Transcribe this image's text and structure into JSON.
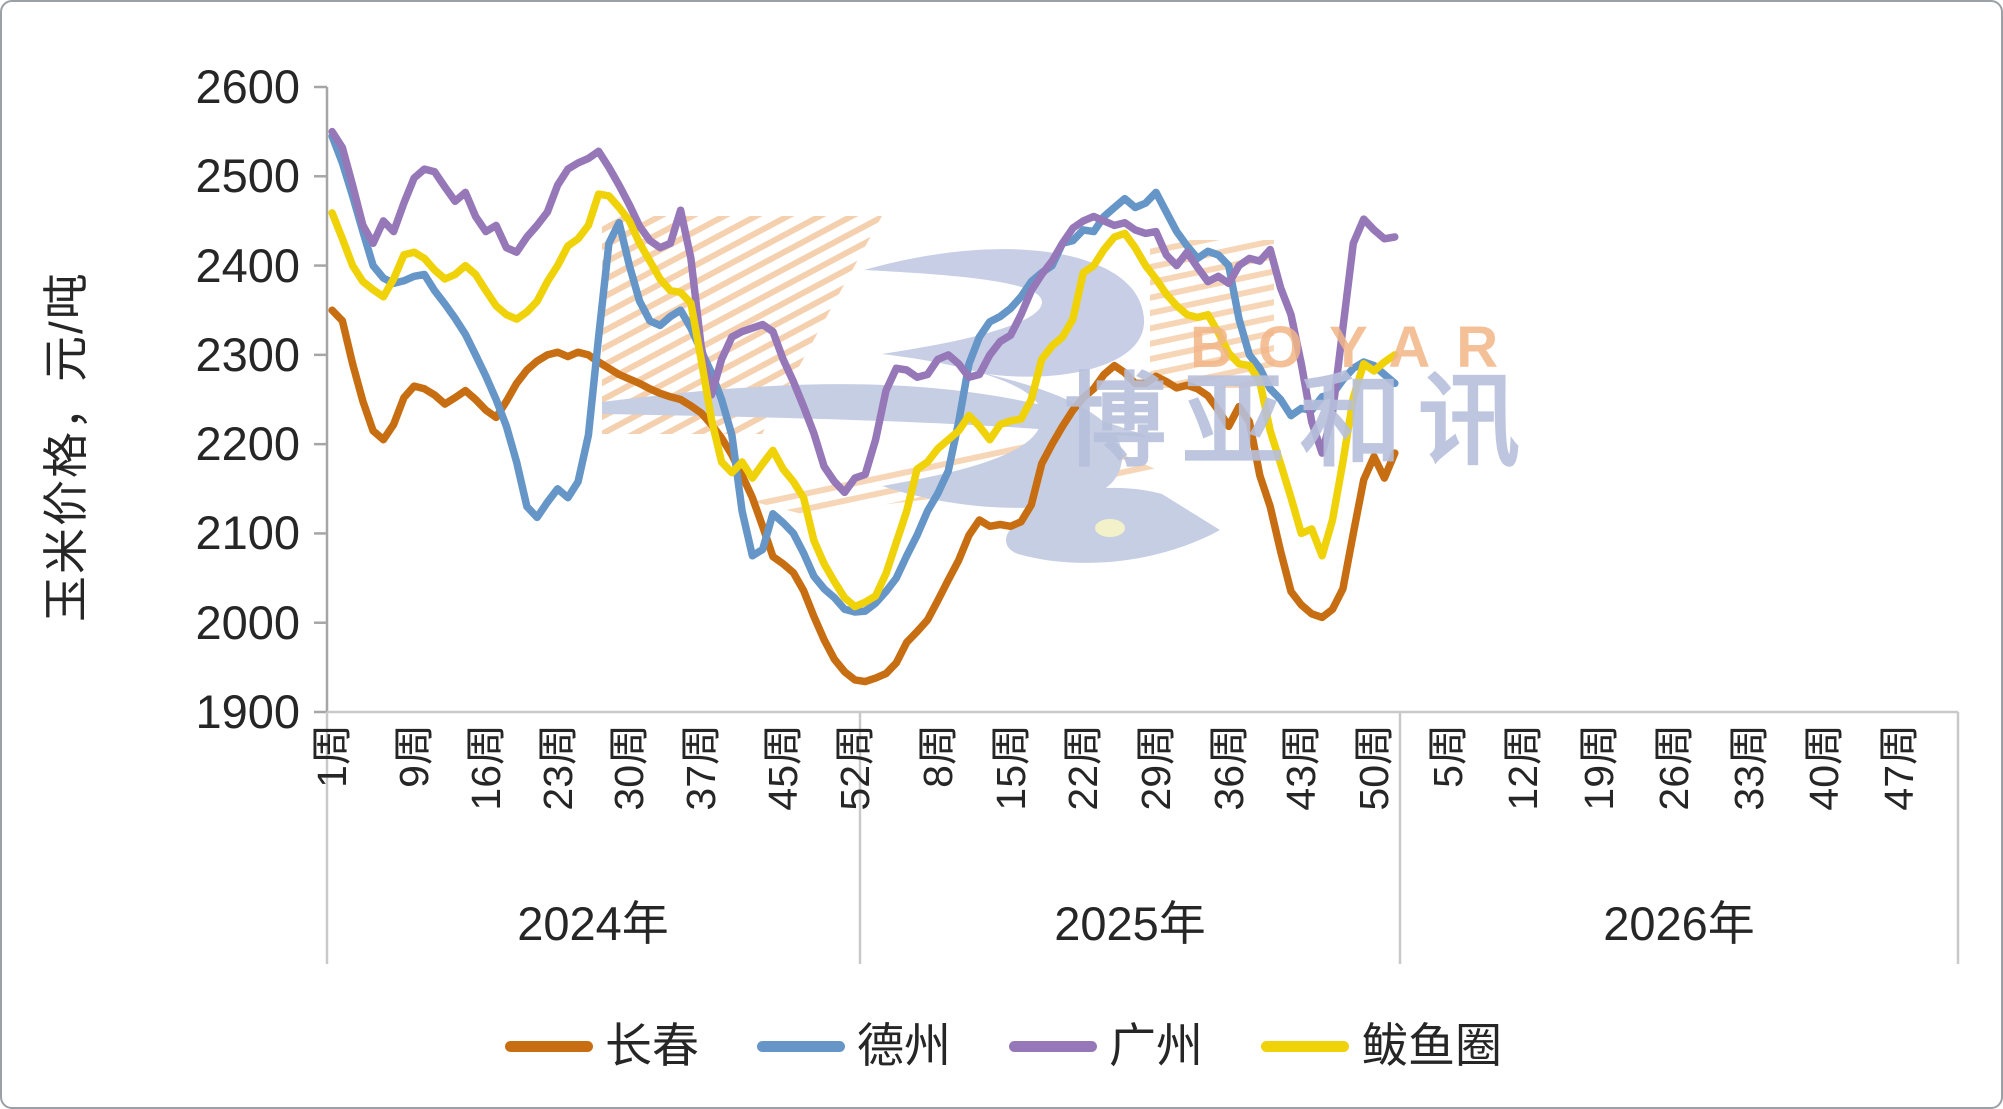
{
  "chart_data": {
    "type": "line",
    "title": "",
    "ylabel": "玉米价格，元/吨",
    "ylim": [
      1900,
      2600
    ],
    "ytick_step": 100,
    "yticks": [
      2600,
      2500,
      2400,
      2300,
      2200,
      2100,
      2000,
      1900
    ],
    "week_suffix": "周",
    "grid": "off",
    "legend_position": "bottom",
    "years": [
      {
        "label": "2024年",
        "weeks": 52,
        "tick_weeks": [
          1,
          9,
          16,
          23,
          30,
          37,
          45,
          52
        ],
        "has_data": true
      },
      {
        "label": "2025年",
        "weeks": 52,
        "tick_weeks": [
          8,
          15,
          22,
          29,
          36,
          43,
          50
        ],
        "has_data": true
      },
      {
        "label": "2026年",
        "weeks": 52,
        "tick_weeks": [
          5,
          12,
          19,
          26,
          33,
          40,
          47
        ],
        "has_data": false
      }
    ],
    "series": [
      {
        "name": "长春",
        "color": "#C86E12",
        "values_2024": [
          2350,
          2338,
          2290,
          2248,
          2215,
          2205,
          2222,
          2252,
          2265,
          2262,
          2255,
          2245,
          2252,
          2260,
          2250,
          2238,
          2230,
          2248,
          2268,
          2283,
          2293,
          2300,
          2303,
          2298,
          2303,
          2300,
          2292,
          2285,
          2278,
          2273,
          2268,
          2262,
          2257,
          2253,
          2250,
          2243,
          2235,
          2222,
          2207,
          2188,
          2165,
          2140,
          2108,
          2074,
          2066,
          2056,
          2036,
          2007,
          1981,
          1959,
          1945,
          1936
        ],
        "values_2025": [
          1934,
          1938,
          1943,
          1955,
          1978,
          1990,
          2003,
          2025,
          2048,
          2070,
          2098,
          2115,
          2108,
          2110,
          2108,
          2113,
          2132,
          2178,
          2200,
          2220,
          2238,
          2252,
          2262,
          2278,
          2288,
          2280,
          2268,
          2268,
          2276,
          2270,
          2263,
          2266,
          2262,
          2254,
          2238,
          2220,
          2242,
          2225,
          2165,
          2130,
          2080,
          2035,
          2020,
          2010,
          2006,
          2015,
          2038,
          2100,
          2160,
          2186,
          2162,
          2190
        ]
      },
      {
        "name": "德州",
        "color": "#6596C7",
        "values_2024": [
          2545,
          2515,
          2478,
          2438,
          2400,
          2386,
          2380,
          2383,
          2388,
          2390,
          2372,
          2357,
          2341,
          2323,
          2300,
          2276,
          2250,
          2220,
          2180,
          2130,
          2118,
          2135,
          2150,
          2140,
          2158,
          2210,
          2320,
          2425,
          2448,
          2400,
          2360,
          2338,
          2333,
          2343,
          2350,
          2330,
          2305,
          2280,
          2250,
          2210,
          2125,
          2075,
          2082,
          2122,
          2112,
          2100,
          2078,
          2052,
          2038,
          2028,
          2015,
          2012
        ],
        "values_2025": [
          2013,
          2022,
          2035,
          2050,
          2075,
          2098,
          2125,
          2145,
          2170,
          2225,
          2290,
          2320,
          2337,
          2343,
          2352,
          2365,
          2382,
          2392,
          2400,
          2425,
          2428,
          2440,
          2438,
          2455,
          2465,
          2475,
          2465,
          2470,
          2482,
          2460,
          2438,
          2422,
          2408,
          2416,
          2412,
          2400,
          2340,
          2300,
          2285,
          2262,
          2250,
          2232,
          2240,
          2238,
          2253,
          2256,
          2272,
          2285,
          2292,
          2288,
          2278,
          2268
        ]
      },
      {
        "name": "广州",
        "color": "#9678B8",
        "values_2024": [
          2550,
          2532,
          2490,
          2445,
          2425,
          2450,
          2438,
          2470,
          2498,
          2508,
          2505,
          2488,
          2472,
          2482,
          2455,
          2438,
          2445,
          2420,
          2415,
          2432,
          2445,
          2460,
          2490,
          2508,
          2515,
          2520,
          2528,
          2510,
          2490,
          2468,
          2444,
          2428,
          2420,
          2425,
          2462,
          2408,
          2310,
          2255,
          2295,
          2320,
          2326,
          2330,
          2334,
          2326,
          2295,
          2270,
          2242,
          2212,
          2175,
          2158,
          2146,
          2162
        ],
        "values_2025": [
          2166,
          2205,
          2260,
          2285,
          2283,
          2275,
          2278,
          2295,
          2300,
          2290,
          2275,
          2278,
          2300,
          2315,
          2322,
          2345,
          2372,
          2390,
          2405,
          2425,
          2442,
          2450,
          2455,
          2450,
          2445,
          2448,
          2440,
          2436,
          2438,
          2412,
          2400,
          2415,
          2398,
          2382,
          2388,
          2380,
          2400,
          2408,
          2405,
          2418,
          2375,
          2345,
          2290,
          2225,
          2190,
          2235,
          2330,
          2425,
          2452,
          2440,
          2430,
          2432
        ]
      },
      {
        "name": "鲅鱼圈",
        "color": "#EFD207",
        "values_2024": [
          2459,
          2430,
          2400,
          2382,
          2373,
          2365,
          2385,
          2412,
          2415,
          2408,
          2395,
          2385,
          2390,
          2400,
          2390,
          2372,
          2355,
          2345,
          2340,
          2348,
          2360,
          2382,
          2400,
          2422,
          2430,
          2445,
          2480,
          2478,
          2465,
          2450,
          2425,
          2405,
          2385,
          2372,
          2370,
          2358,
          2295,
          2228,
          2180,
          2168,
          2180,
          2162,
          2178,
          2193,
          2172,
          2158,
          2140,
          2092,
          2066,
          2046,
          2028,
          2018
        ],
        "values_2025": [
          2023,
          2030,
          2055,
          2090,
          2125,
          2172,
          2180,
          2195,
          2205,
          2215,
          2232,
          2220,
          2205,
          2222,
          2226,
          2228,
          2250,
          2295,
          2310,
          2320,
          2340,
          2392,
          2400,
          2418,
          2432,
          2436,
          2420,
          2400,
          2385,
          2368,
          2355,
          2345,
          2342,
          2345,
          2325,
          2302,
          2290,
          2288,
          2270,
          2215,
          2178,
          2140,
          2100,
          2105,
          2075,
          2115,
          2180,
          2252,
          2290,
          2282,
          2292,
          2300
        ]
      }
    ]
  },
  "watermark": {
    "cn_text": "博亚和讯",
    "en_text": "BOYAR",
    "bird_color": "#b9c2de",
    "hatch_color": "#f2c59b",
    "eye_color": "#f0eebc"
  },
  "axis_colors": {
    "axis_line": "#a6a6a6",
    "separator": "#c9c9c9",
    "tick_text": "#262626"
  }
}
